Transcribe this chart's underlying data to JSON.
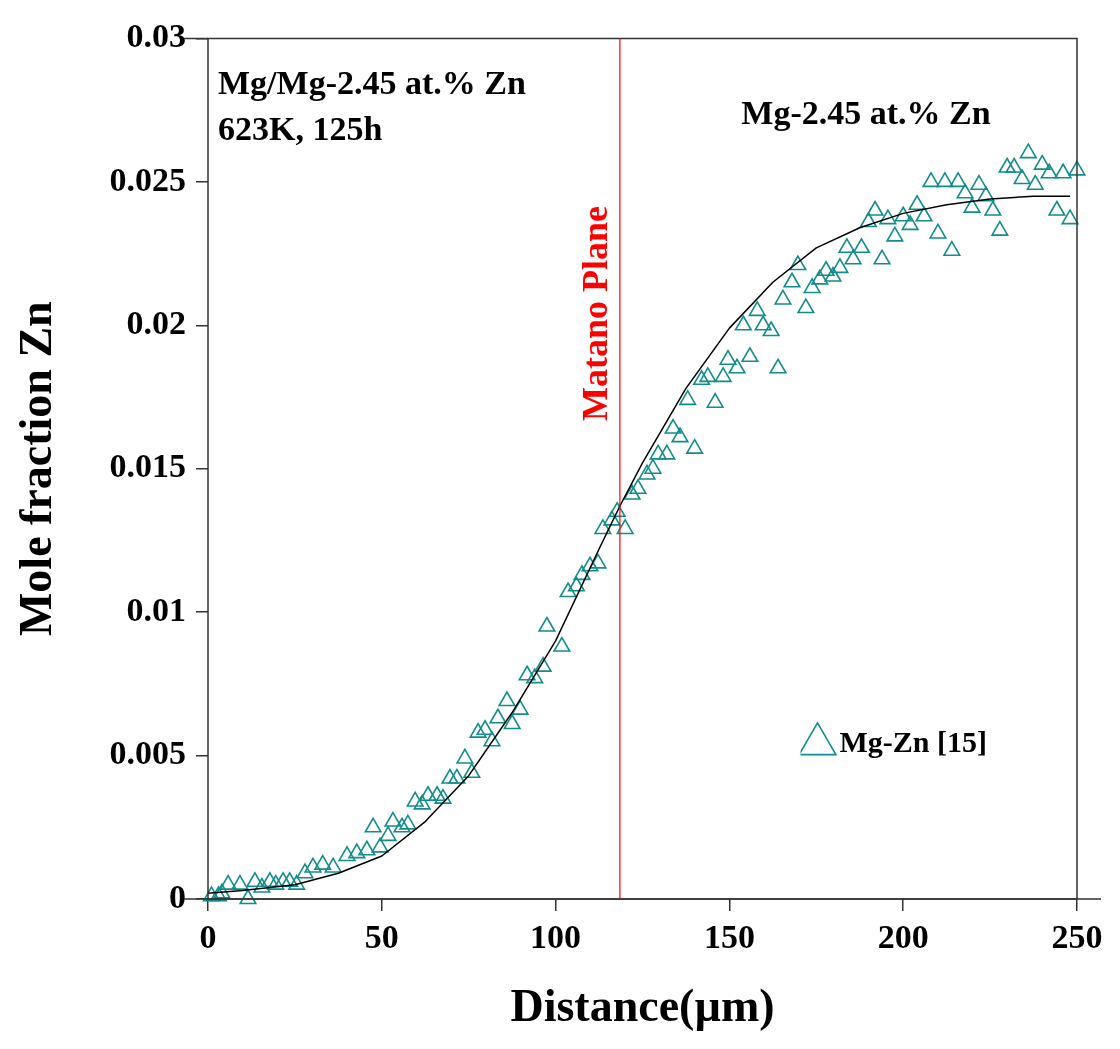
{
  "chart_data": {
    "type": "scatter",
    "xlabel": "Distance(µm)",
    "ylabel": "Mole fraction Zn",
    "xlim": [
      0,
      250
    ],
    "xticks": [
      0,
      50,
      100,
      150,
      200,
      250
    ],
    "ylim": [
      0,
      0.03
    ],
    "yticks": [
      0,
      0.005,
      0.01,
      0.015,
      0.02,
      0.025,
      0.03
    ],
    "grid": false,
    "legend": "bottom right",
    "annotations": [
      "Mg/Mg-2.45 at.% Zn\n623K, 125h",
      "Mg-2.45 at.% Zn"
    ],
    "ref_lines": [
      {
        "axis": "x",
        "value": 118.5,
        "label": "Matano Plane",
        "color": "#ff0000"
      }
    ],
    "series": [
      {
        "name": "Mg-Zn [15]",
        "type": "scatter",
        "marker": "triangle",
        "color": "#138c8c",
        "x": [
          1,
          3,
          4,
          5.8,
          9.2,
          11.5,
          13.5,
          15.5,
          17.8,
          19.5,
          21.6,
          23.5,
          25.5,
          27.9,
          30.2,
          33,
          36,
          40,
          42.8,
          45.7,
          47.5,
          49.5,
          51.8,
          53.2,
          55.8,
          57.5,
          59.6,
          61.6,
          63.3,
          65.9,
          67.6,
          69.6,
          71.6,
          73.9,
          75.9,
          77.7,
          79.7,
          81.7,
          83.4,
          86,
          87.5,
          89.8,
          91.8,
          94,
          96.4,
          97.5,
          101.8,
          103.6,
          106,
          107.6,
          109.9,
          112.2,
          113.6,
          116.2,
          117.7,
          120,
          122,
          123.7,
          126.3,
          128,
          129.5,
          132,
          133.8,
          135.8,
          138,
          140,
          142,
          143.8,
          145.9,
          148.2,
          149.6,
          152.2,
          154,
          155.9,
          158,
          159.7,
          162,
          164,
          165.4,
          168,
          169.7,
          172,
          173.8,
          176,
          177.8,
          179.8,
          181.8,
          183.8,
          185.6,
          188,
          190,
          191.9,
          193.9,
          195.6,
          197.6,
          200,
          202,
          204,
          206,
          208,
          210,
          212,
          214,
          215.8,
          217.8,
          219.8,
          221.8,
          223.8,
          225.8,
          227.8,
          229.9,
          231.9,
          234.2,
          236,
          238,
          240,
          242,
          244.2,
          246,
          248,
          250
        ],
        "values": [
          0.0001,
          0.0001,
          0.0002,
          0.0005,
          0.0005,
          0.0,
          0.0006,
          0.0004,
          0.0006,
          0.0005,
          0.0006,
          0.0006,
          0.0005,
          0.0009,
          0.0011,
          0.0012,
          0.0011,
          0.0015,
          0.0016,
          0.0017,
          0.0025,
          0.0018,
          0.0022,
          0.0027,
          0.0025,
          0.0026,
          0.0034,
          0.0033,
          0.0036,
          0.0036,
          0.0035,
          0.0042,
          0.0042,
          0.0049,
          0.0044,
          0.0058,
          0.0059,
          0.0055,
          0.0063,
          0.0069,
          0.0061,
          0.0066,
          0.0078,
          0.0077,
          0.0081,
          0.0095,
          0.0088,
          0.0107,
          0.0109,
          0.0113,
          0.0116,
          0.0117,
          0.0129,
          0.0132,
          0.0135,
          0.0129,
          0.0141,
          0.0143,
          0.0148,
          0.015,
          0.0155,
          0.0155,
          0.0164,
          0.0161,
          0.0174,
          0.0157,
          0.0181,
          0.0182,
          0.0173,
          0.0182,
          0.0188,
          0.0185,
          0.02,
          0.0189,
          0.0205,
          0.02,
          0.0198,
          0.0185,
          0.0209,
          0.0215,
          0.0221,
          0.0206,
          0.0213,
          0.0216,
          0.0219,
          0.0217,
          0.022,
          0.0227,
          0.0223,
          0.0227,
          0.0236,
          0.024,
          0.0223,
          0.0237,
          0.0231,
          0.0238,
          0.0235,
          0.0242,
          0.0238,
          0.025,
          0.0232,
          0.025,
          0.0226,
          0.025,
          0.0246,
          0.0241,
          0.0249,
          0.0245,
          0.024,
          0.0233,
          0.0255,
          0.0255,
          0.0251,
          0.026,
          0.0249,
          0.0256,
          0.0253,
          0.024,
          0.0253,
          0.0237,
          0.0254
        ]
      },
      {
        "type": "line",
        "marker": "none",
        "color": "#000000",
        "x": [
          0,
          10,
          25,
          37.5,
          50,
          62.5,
          75,
          87.5,
          100,
          112.5,
          118.5,
          125,
          137.5,
          150,
          162.5,
          175,
          187.5,
          200,
          212.5,
          225,
          237.5,
          248
        ],
        "values": [
          0.0002,
          0.0003,
          0.0005,
          0.0009,
          0.0015,
          0.0027,
          0.0043,
          0.0065,
          0.009,
          0.0122,
          0.0137,
          0.0152,
          0.0178,
          0.0199,
          0.0215,
          0.0227,
          0.0234,
          0.0239,
          0.0242,
          0.0244,
          0.0245,
          0.0245
        ]
      }
    ]
  }
}
